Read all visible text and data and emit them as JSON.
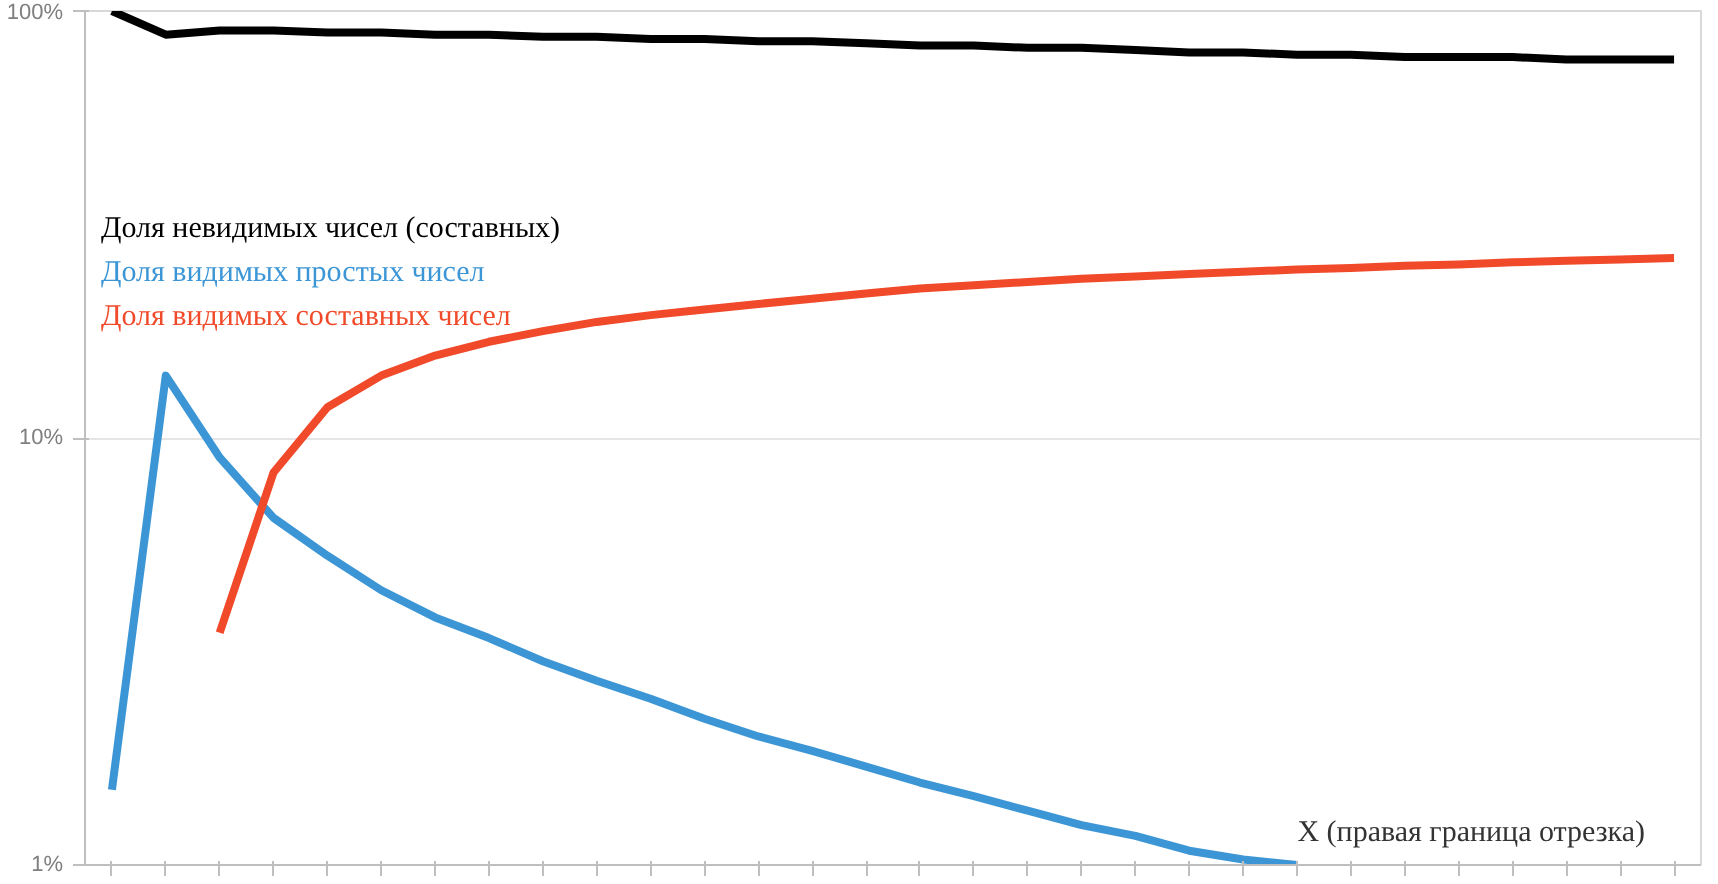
{
  "chart_data": {
    "type": "line",
    "xlabel": "X (правая граница отрезка)",
    "categories": [
      null,
      null,
      null,
      null,
      null,
      null,
      null,
      null,
      null,
      null,
      null,
      null,
      null,
      null,
      null,
      null,
      null,
      null,
      null,
      null,
      null,
      null,
      null,
      null,
      null,
      null,
      null,
      null,
      null,
      null
    ],
    "series": [
      {
        "name": "Доля невидимых чисел (составных)",
        "color": "#000000",
        "values": [
          100,
          88,
          90,
          90,
          89,
          89,
          88,
          88,
          87,
          87,
          86,
          86,
          85,
          85,
          84,
          83,
          83,
          82,
          82,
          81,
          80,
          80,
          79,
          79,
          78,
          78,
          78,
          77,
          77,
          77
        ]
      },
      {
        "name": "Доля видимых простых чисел",
        "color": "#3c96d6",
        "values": [
          1.5,
          14,
          9,
          6.5,
          5.3,
          4.4,
          3.8,
          3.4,
          3.0,
          2.7,
          2.45,
          2.2,
          2.0,
          1.85,
          1.7,
          1.56,
          1.45,
          1.34,
          1.24,
          1.17,
          1.08,
          1.03,
          1.0,
          null,
          null,
          null,
          null,
          null,
          null,
          null
        ]
      },
      {
        "name": "Доля видимых составных чисел",
        "color": "#f04a2a",
        "values": [
          null,
          null,
          3.5,
          8.3,
          11.8,
          14,
          15.6,
          16.8,
          17.8,
          18.7,
          19.4,
          20,
          20.6,
          21.2,
          21.8,
          22.4,
          22.8,
          23.2,
          23.6,
          23.9,
          24.2,
          24.5,
          24.8,
          25,
          25.3,
          25.5,
          25.8,
          26,
          26.2,
          26.4
        ]
      }
    ],
    "log": "y",
    "ylim": [
      1,
      100
    ],
    "yticks": [
      {
        "value": 1,
        "label": "1%"
      },
      {
        "value": 10,
        "label": "10%"
      },
      {
        "value": 100,
        "label": "100%"
      }
    ],
    "grid": "y",
    "legend": "top left",
    "tick_labels": "y",
    "line_style": "solid",
    "marker": "none"
  }
}
